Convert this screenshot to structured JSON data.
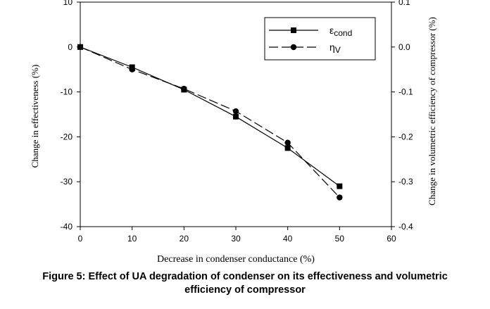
{
  "chart_data": {
    "type": "line",
    "caption": {
      "line1": "Figure 5: Effect of UA degradation of condenser on its effectiveness and volumetric",
      "line2": "efficiency of compressor"
    },
    "xlabel": "Decrease in  condenser conductance (%)",
    "ylabel_left": "Change in effectiveness (%)",
    "ylabel_right": "Change in volumetric efficiency of compressor (%)",
    "xlim": [
      0,
      60
    ],
    "ylim_left": [
      -40,
      10
    ],
    "ylim_right": [
      -0.4,
      0.1
    ],
    "x_ticks": [
      "0",
      "10",
      "20",
      "30",
      "40",
      "50",
      "60"
    ],
    "y_left_ticks": [
      "10",
      "0",
      "-10",
      "-20",
      "-30",
      "-40"
    ],
    "y_right_ticks": [
      "0.1",
      "0.0",
      "-0.1",
      "-0.2",
      "-0.3",
      "-0.4"
    ],
    "grid": false,
    "legend_position": "top-right",
    "series": [
      {
        "name": "ε",
        "subscript": "cond",
        "axis": "left",
        "marker": "square",
        "line_style": "solid",
        "color": "#000000",
        "x": [
          0,
          10,
          20,
          30,
          40,
          50
        ],
        "y": [
          0,
          -4.5,
          -9.5,
          -15.5,
          -22.5,
          -31.0
        ]
      },
      {
        "name": "η",
        "subscript": "V",
        "axis": "right",
        "marker": "circle",
        "line_style": "dashed",
        "color": "#000000",
        "x": [
          0,
          10,
          20,
          30,
          40,
          50
        ],
        "y": [
          0.0,
          -0.05,
          -0.093,
          -0.143,
          -0.213,
          -0.335
        ]
      }
    ]
  }
}
